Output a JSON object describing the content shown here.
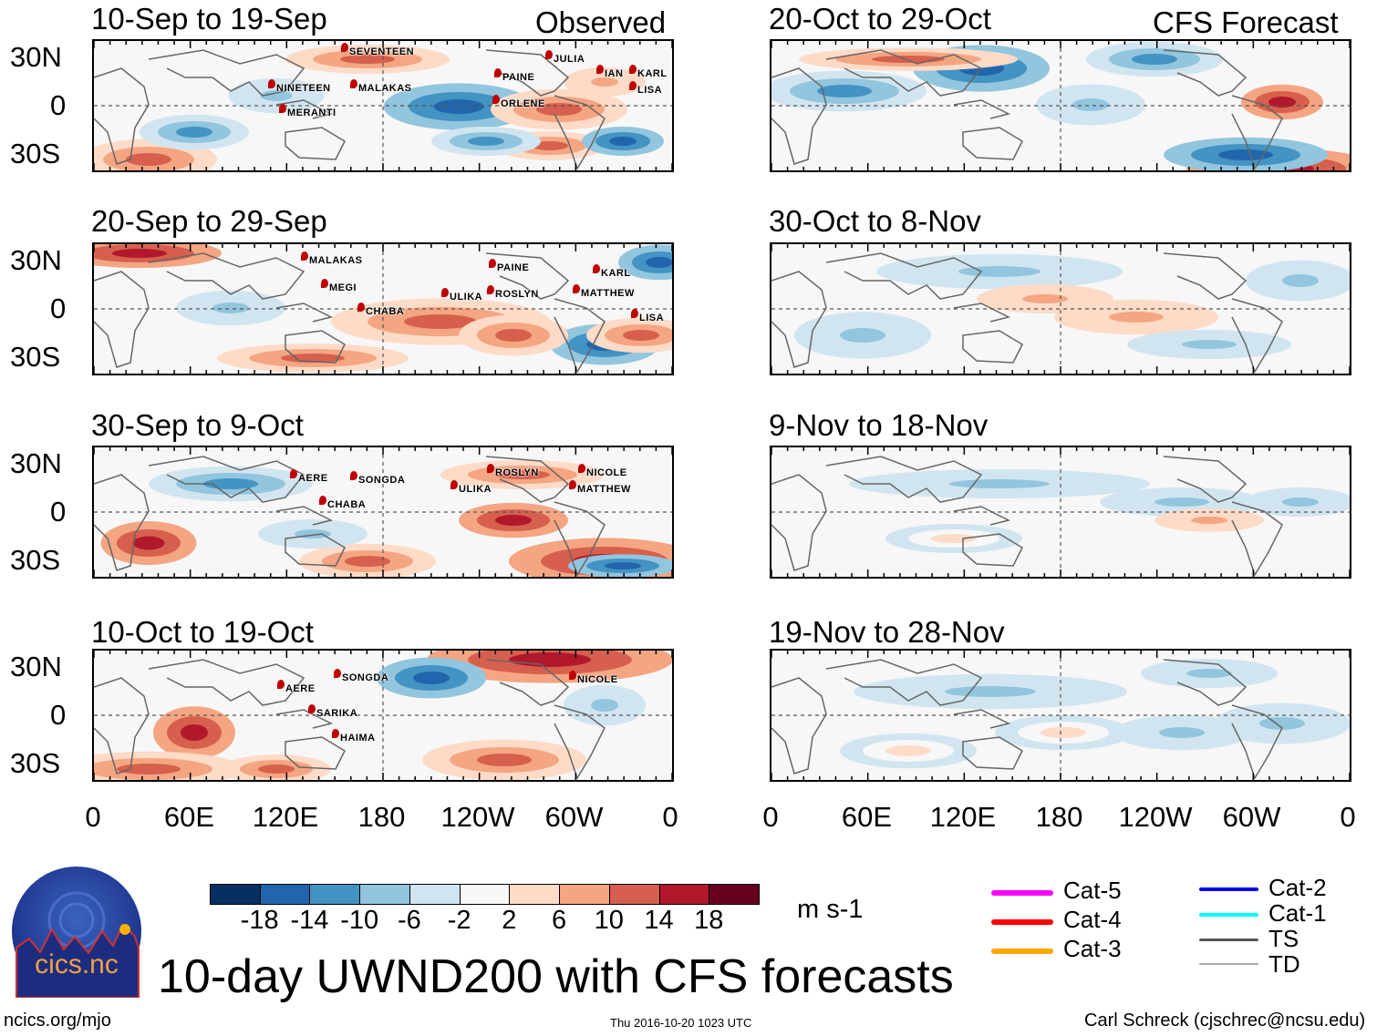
{
  "figure_title": "10-day UWND200 with CFS forecasts",
  "left_column_label": "Observed",
  "right_column_label": "CFS Forecast",
  "panels_left": [
    {
      "title": "10-Sep to 19-Sep",
      "storms": [
        "SEVENTEEN",
        "NINETEEN",
        "MERANTI",
        "MALAKAS",
        "JULIA",
        "IAN",
        "KARL",
        "LISA",
        "PAINE",
        "ORLENE"
      ]
    },
    {
      "title": "20-Sep to 29-Sep",
      "storms": [
        "MALAKAS",
        "MEGI",
        "CHABA",
        "PAINE",
        "ROSLYN",
        "ULIKA",
        "KARL",
        "MATTHEW",
        "LISA"
      ]
    },
    {
      "title": "30-Sep to 9-Oct",
      "storms": [
        "AERE",
        "CHABA",
        "SONGDA",
        "ULIKA",
        "ROSLYN",
        "NICOLE",
        "MATTHEW"
      ]
    },
    {
      "title": "10-Oct to 19-Oct",
      "storms": [
        "SONGDA",
        "AERE",
        "SARIKA",
        "HAIMA",
        "NICOLE"
      ]
    }
  ],
  "panels_right": [
    {
      "title": "20-Oct to 29-Oct"
    },
    {
      "title": "30-Oct to 8-Nov"
    },
    {
      "title": "9-Nov to 18-Nov"
    },
    {
      "title": "19-Nov to 28-Nov"
    }
  ],
  "lat_labels": [
    "30N",
    "0",
    "30S"
  ],
  "lon_labels": [
    "0",
    "60E",
    "120E",
    "180",
    "120W",
    "60W",
    "0"
  ],
  "colorbar": {
    "colors": [
      "#053061",
      "#2166ac",
      "#4393c3",
      "#92c5de",
      "#d1e5f0",
      "#f7f7f7",
      "#fddbc7",
      "#f4a582",
      "#d6604d",
      "#b2182b",
      "#67001f"
    ],
    "labels": [
      "-18",
      "-14",
      "-10",
      "-6",
      "-2",
      "2",
      "6",
      "10",
      "14",
      "18"
    ],
    "units": "m s-1"
  },
  "legend": [
    {
      "label": "Cat-5",
      "color": "#ff00ff"
    },
    {
      "label": "Cat-4",
      "color": "#ff0000"
    },
    {
      "label": "Cat-3",
      "color": "#ffa500"
    },
    {
      "label": "Cat-2",
      "color": "#0000ff"
    },
    {
      "label": "Cat-1",
      "color": "#00ffff"
    },
    {
      "label": "TS",
      "color": "#555555"
    },
    {
      "label": "TD",
      "color": "#aaaaaa"
    }
  ],
  "logo_text": "cics.nc",
  "logo_ring_text": "Cooperative Institute for Climate and Satellites",
  "footer": {
    "left": "ncics.org/mjo",
    "center": "Thu 2016-10-20 1023 UTC",
    "right": "Carl Schreck (cjschrec@ncsu.edu)"
  }
}
